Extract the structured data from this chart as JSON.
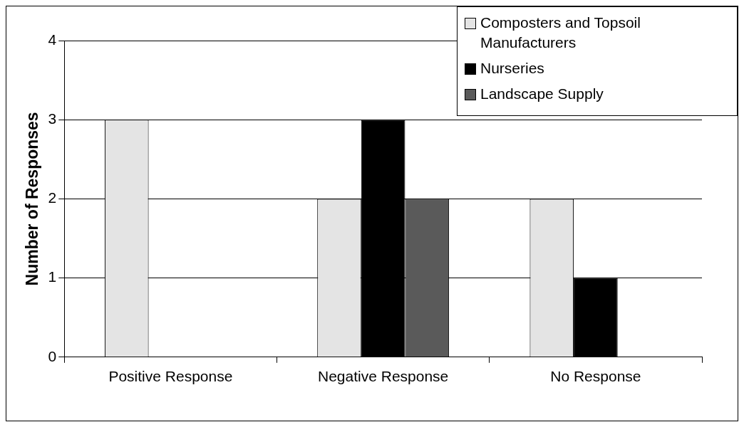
{
  "chart_data": {
    "type": "bar",
    "ylabel": "Number of Responses",
    "categories": [
      "Positive Response",
      "Negative Response",
      "No Response"
    ],
    "series": [
      {
        "name": "Composters and Topsoil Manufacturers",
        "color": "#e4e4e4",
        "values": [
          3,
          2,
          2
        ]
      },
      {
        "name": "Nurseries",
        "color": "#000000",
        "values": [
          0,
          3,
          1
        ]
      },
      {
        "name": "Landscape Supply",
        "color": "#5a5a5a",
        "values": [
          0,
          2,
          0
        ]
      }
    ],
    "ylim": [
      0,
      4
    ],
    "yticks": [
      0,
      1,
      2,
      3,
      4
    ],
    "grid": "y",
    "legend": "top right"
  }
}
